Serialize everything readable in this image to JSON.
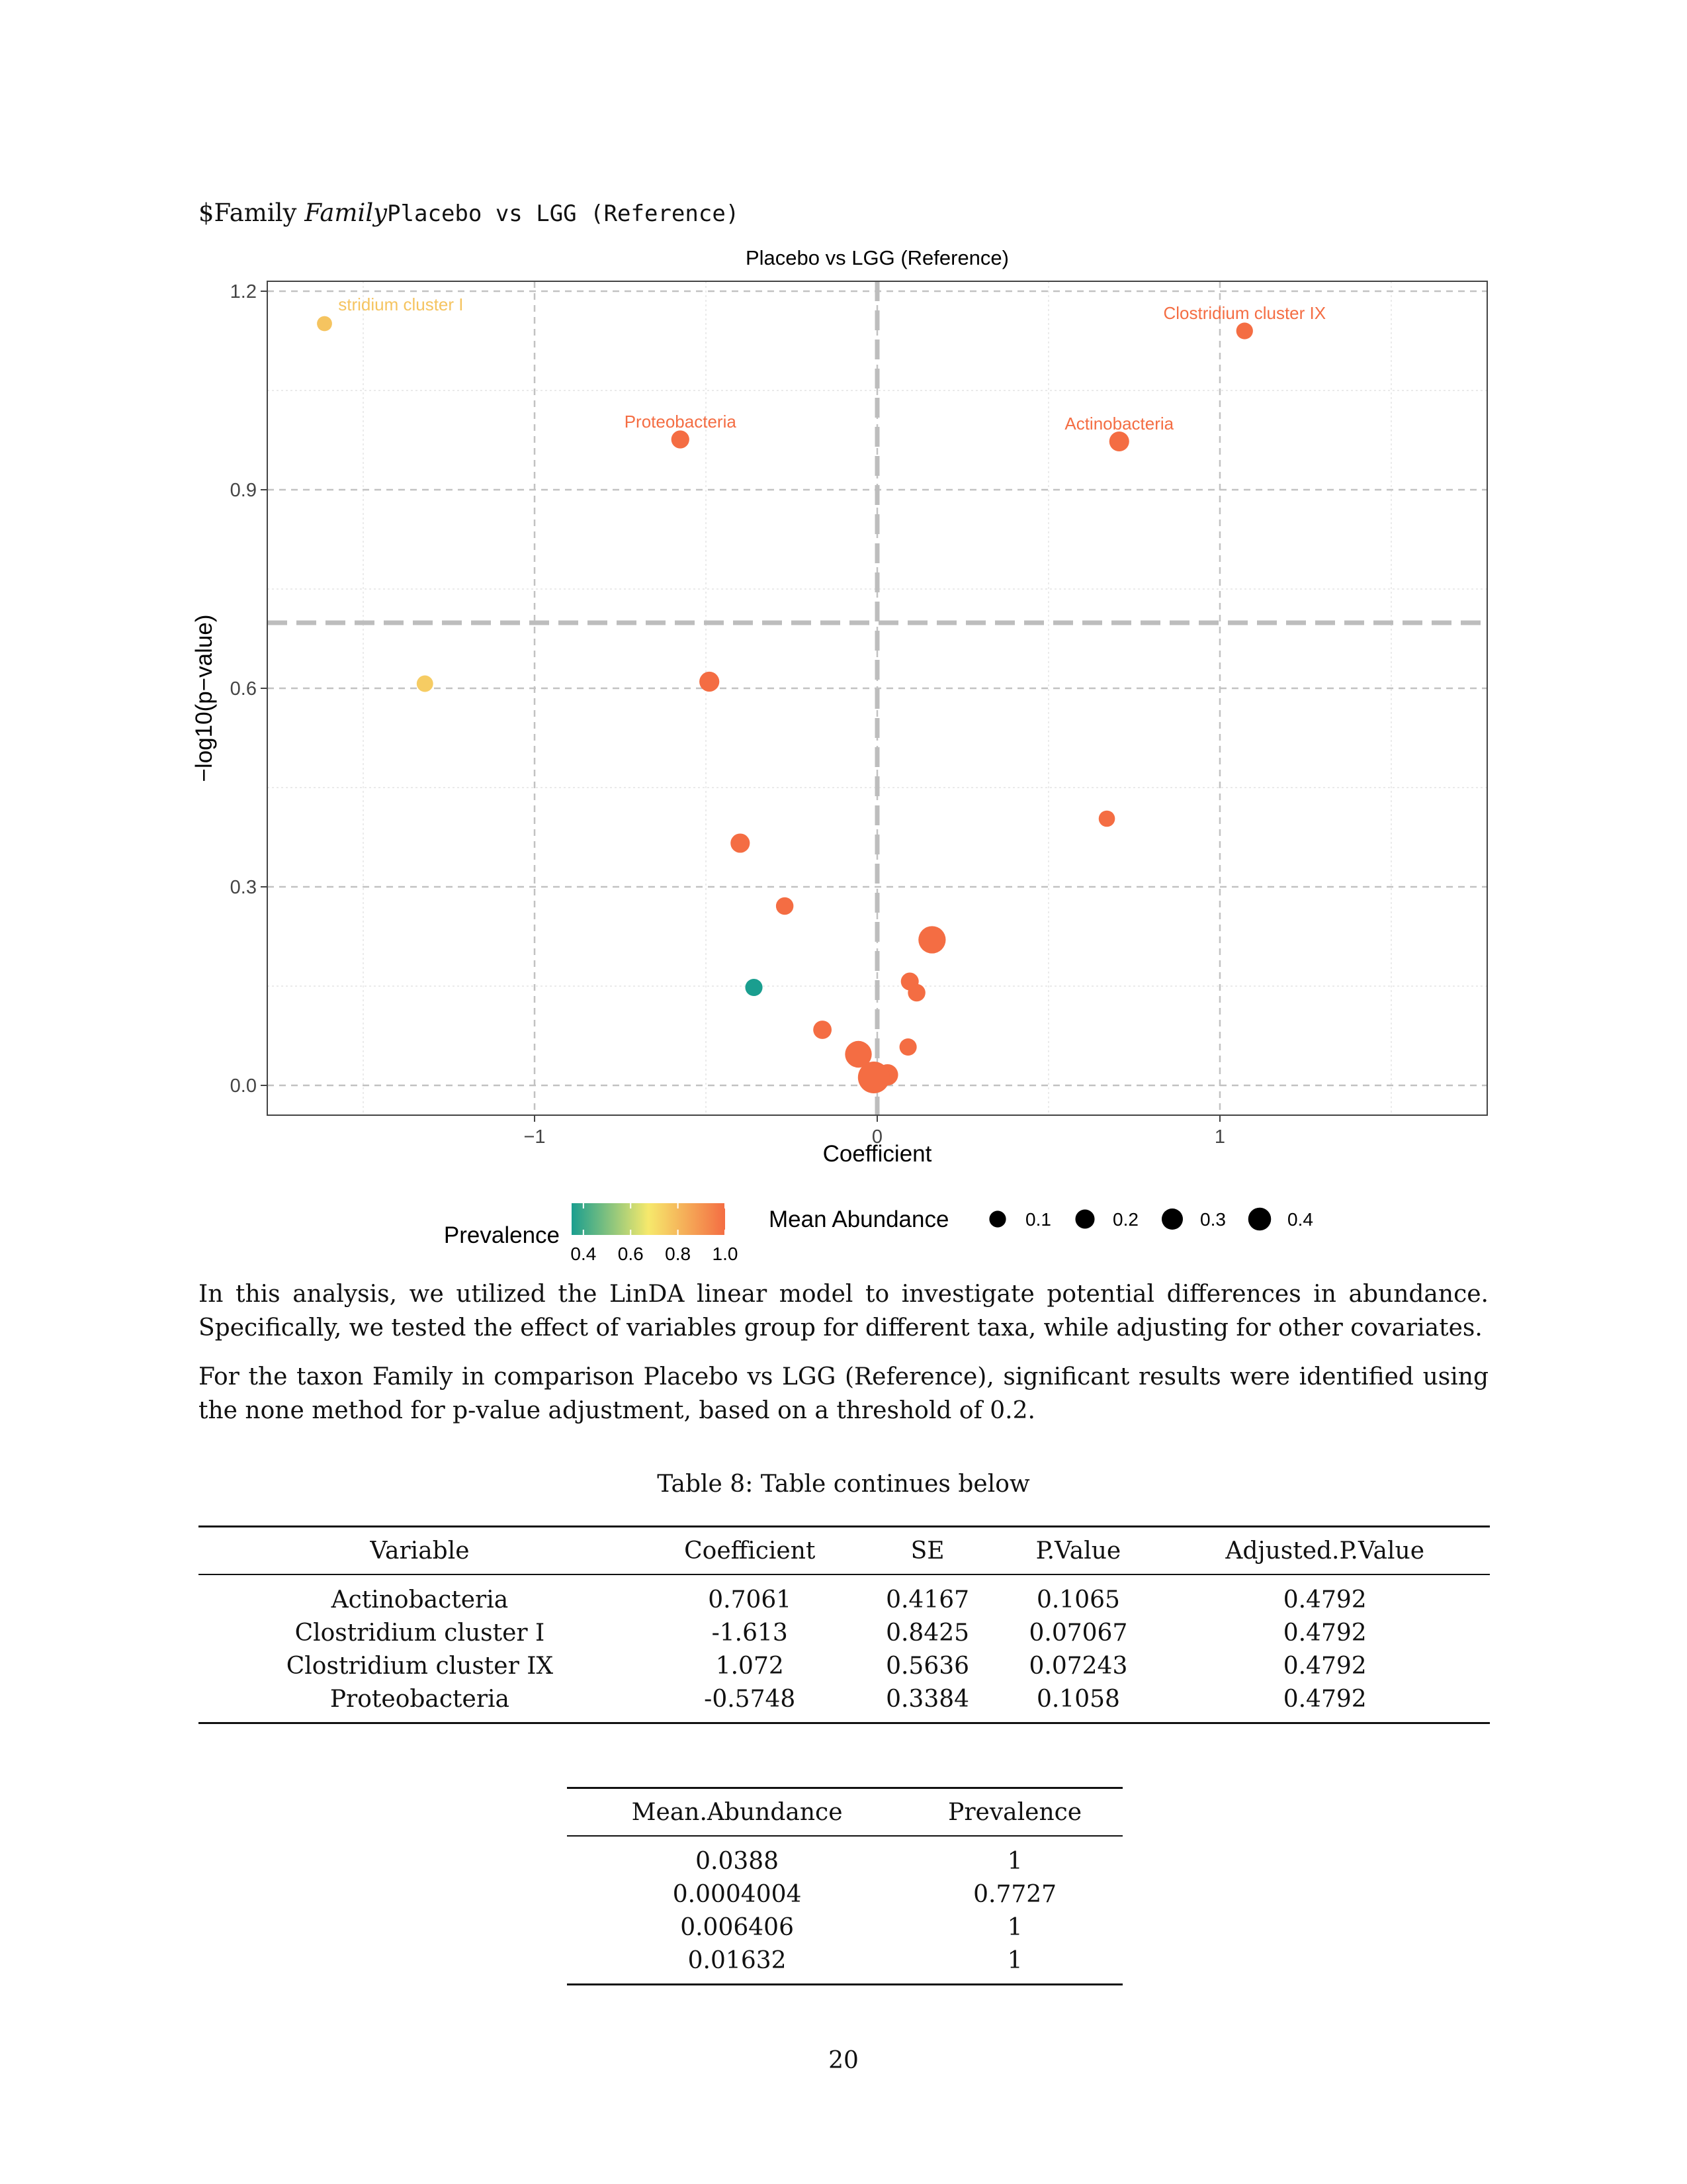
{
  "heading": {
    "prefix": "$Family ",
    "italic": "Family",
    "mono": "Placebo vs LGG (Reference)"
  },
  "chart_data": {
    "type": "scatter",
    "title": "Placebo vs LGG (Reference)",
    "xlabel": "Coefficient",
    "ylabel": "−log10(p−value)",
    "xlim": [
      -1.78,
      1.78
    ],
    "ylim": [
      -0.045,
      1.215
    ],
    "xticks": [
      {
        "v": -1,
        "label": "−1"
      },
      {
        "v": 0,
        "label": "0"
      },
      {
        "v": 1,
        "label": "1"
      }
    ],
    "yticks": [
      {
        "v": 0,
        "label": "0.0"
      },
      {
        "v": 0.3,
        "label": "0.3"
      },
      {
        "v": 0.6,
        "label": "0.6"
      },
      {
        "v": 0.9,
        "label": "0.9"
      },
      {
        "v": 1.2,
        "label": "1.2"
      }
    ],
    "vline": 0,
    "hline": 0.699,
    "grid": true,
    "points": [
      {
        "x": -1.613,
        "y": 1.151,
        "abundance": 0.0004,
        "prevalence": 0.7727,
        "label": "stridium cluster I",
        "label_dx": 0.04,
        "label_dy": 0.02,
        "label_anchor": "start"
      },
      {
        "x": 1.072,
        "y": 1.14,
        "abundance": 0.0064,
        "prevalence": 1,
        "label": "Clostridium cluster IX",
        "label_dx": 0,
        "label_dy": 0.018
      },
      {
        "x": -0.5748,
        "y": 0.976,
        "abundance": 0.0163,
        "prevalence": 1,
        "label": "Proteobacteria",
        "label_dx": 0,
        "label_dy": 0.018
      },
      {
        "x": 0.7061,
        "y": 0.973,
        "abundance": 0.0388,
        "prevalence": 1,
        "label": "Actinobacteria",
        "label_dx": 0,
        "label_dy": 0.018
      },
      {
        "x": -1.32,
        "y": 0.607,
        "abundance": 0.005,
        "prevalence": 0.75
      },
      {
        "x": -0.49,
        "y": 0.61,
        "abundance": 0.04,
        "prevalence": 1
      },
      {
        "x": 0.67,
        "y": 0.403,
        "abundance": 0.004,
        "prevalence": 1
      },
      {
        "x": -0.4,
        "y": 0.366,
        "abundance": 0.03,
        "prevalence": 1
      },
      {
        "x": -0.27,
        "y": 0.271,
        "abundance": 0.012,
        "prevalence": 1
      },
      {
        "x": 0.16,
        "y": 0.22,
        "abundance": 0.22,
        "prevalence": 1
      },
      {
        "x": -0.36,
        "y": 0.148,
        "abundance": 0.01,
        "prevalence": 0.35
      },
      {
        "x": 0.095,
        "y": 0.157,
        "abundance": 0.015,
        "prevalence": 1
      },
      {
        "x": 0.115,
        "y": 0.14,
        "abundance": 0.012,
        "prevalence": 1
      },
      {
        "x": -0.16,
        "y": 0.084,
        "abundance": 0.02,
        "prevalence": 1
      },
      {
        "x": 0.09,
        "y": 0.058,
        "abundance": 0.01,
        "prevalence": 1
      },
      {
        "x": -0.055,
        "y": 0.047,
        "abundance": 0.2,
        "prevalence": 1
      },
      {
        "x": 0.03,
        "y": 0.016,
        "abundance": 0.06,
        "prevalence": 1
      },
      {
        "x": -0.01,
        "y": 0.012,
        "abundance": 0.4,
        "prevalence": 1
      }
    ],
    "legend": {
      "prevalence_title": "Prevalence",
      "prevalence_ticks": [
        "0.4",
        "0.6",
        "0.8",
        "1.0"
      ],
      "abundance_title": "Mean Abundance",
      "abundance_items": [
        {
          "label": "0.1",
          "value": 0.1
        },
        {
          "label": "0.2",
          "value": 0.2
        },
        {
          "label": "0.3",
          "value": 0.3
        },
        {
          "label": "0.4",
          "value": 0.4
        }
      ],
      "colors": [
        "#1a9e8f",
        "#f6e96c",
        "#f46d43"
      ]
    }
  },
  "paragraphs": [
    "In this analysis, we utilized the LinDA linear model to investigate potential differences in abundance. Specifically, we tested the effect of variables group for different taxa, while adjusting for other covariates.",
    "For the taxon Family in comparison Placebo vs LGG (Reference), significant results were identified using the none method for p-value adjustment, based on a threshold of 0.2."
  ],
  "table_caption": "Table 8: Table continues below",
  "table1": {
    "headers": [
      "Variable",
      "Coefficient",
      "SE",
      "P.Value",
      "Adjusted.P.Value"
    ],
    "rows": [
      [
        "Actinobacteria",
        "0.7061",
        "0.4167",
        "0.1065",
        "0.4792"
      ],
      [
        "Clostridium cluster I",
        "-1.613",
        "0.8425",
        "0.07067",
        "0.4792"
      ],
      [
        "Clostridium cluster IX",
        "1.072",
        "0.5636",
        "0.07243",
        "0.4792"
      ],
      [
        "Proteobacteria",
        "-0.5748",
        "0.3384",
        "0.1058",
        "0.4792"
      ]
    ]
  },
  "table2": {
    "headers": [
      "Mean.Abundance",
      "Prevalence"
    ],
    "rows": [
      [
        "0.0388",
        "1"
      ],
      [
        "0.0004004",
        "0.7727"
      ],
      [
        "0.006406",
        "1"
      ],
      [
        "0.01632",
        "1"
      ]
    ]
  },
  "page_number": "20"
}
